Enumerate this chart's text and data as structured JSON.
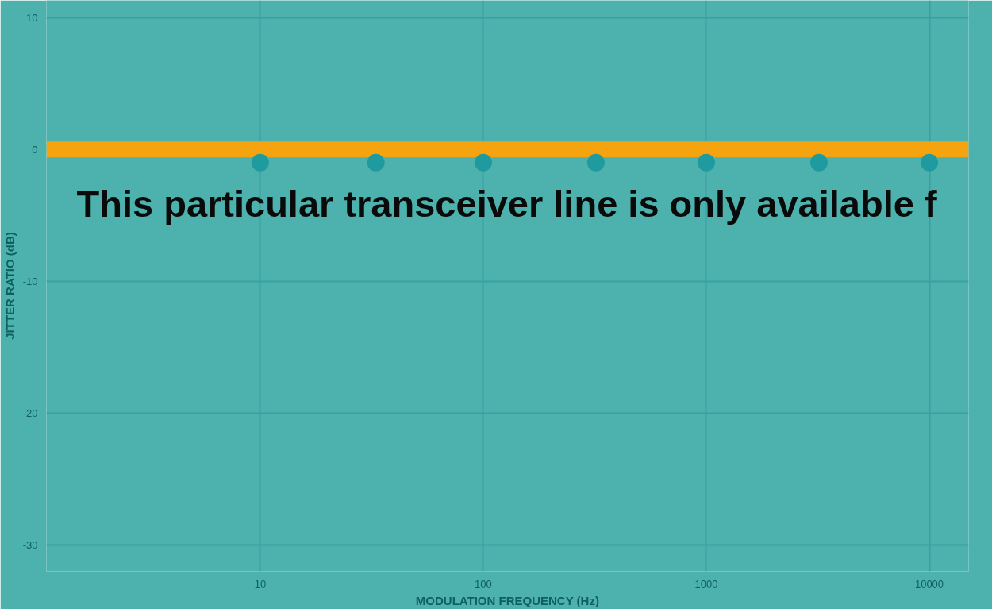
{
  "chart_data": {
    "type": "line",
    "xlabel": "MODULATION FREQUENCY (Hz)",
    "ylabel": "JITTER RATIO (dB)",
    "annotations": [
      "This particular transceiver line is only available f"
    ],
    "log": "x",
    "xlim": [
      1.1,
      15000
    ],
    "xticks": [
      10,
      100,
      1000,
      10000
    ],
    "ylim": [
      -32,
      11.3
    ],
    "yticks": [
      10,
      0,
      -10,
      -20,
      -30
    ],
    "grid": true,
    "series": [
      {
        "color": "#f5a30f",
        "x": [
          1.1,
          15000
        ],
        "values": [
          0,
          0
        ],
        "marker": "none"
      },
      {
        "type": "scatter",
        "color": "#1f9a9e",
        "x": [
          10,
          33,
          100,
          320,
          1000,
          3200,
          10000
        ],
        "values": [
          -1,
          -1,
          -1,
          -1,
          -1,
          -1,
          -1
        ],
        "marker": "circle"
      }
    ]
  }
}
